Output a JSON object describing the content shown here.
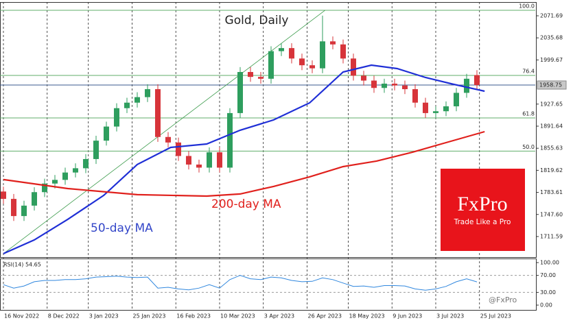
{
  "chart_data": {
    "type": "candlestick",
    "title": "Gold, Daily",
    "annotations": [
      "200-day MA",
      "50-day MA"
    ],
    "logo": {
      "name": "FxPro",
      "tagline": "Trade Like a Pro"
    },
    "watermark": "@FxPro",
    "xlim": [
      -1.33,
      206.67
    ],
    "xticks": [
      {
        "value": 0,
        "label": "16 Nov 2022"
      },
      {
        "value": 17,
        "label": "8 Dec 2022"
      },
      {
        "value": 33,
        "label": "3 Jan 2023"
      },
      {
        "value": 50,
        "label": "25 Jan 2023"
      },
      {
        "value": 67,
        "label": "16 Feb 2023"
      },
      {
        "value": 84,
        "label": "10 Mar 2023"
      },
      {
        "value": 101,
        "label": "3 Apr 2023"
      },
      {
        "value": 118,
        "label": "26 Apr 2023"
      },
      {
        "value": 134,
        "label": "18 May 2023"
      },
      {
        "value": 151,
        "label": "9 Jun 2023"
      },
      {
        "value": 168,
        "label": "3 Jul 2023"
      },
      {
        "value": 185,
        "label": "25 Jul 2023"
      }
    ],
    "ylim": [
      1678.0,
      2094.1
    ],
    "yticks": [
      2071.69,
      2035.68,
      1999.67,
      1927.65,
      1891.64,
      1855.63,
      1819.62,
      1783.61,
      {
        "value": 1747.6,
        "label": "1747.60"
      },
      1711.59
    ],
    "last_price": 1958.75,
    "x": [
      0,
      4,
      8,
      12,
      16,
      20,
      24,
      28,
      32,
      36,
      40,
      44,
      48,
      52,
      56,
      60,
      64,
      68,
      72,
      76,
      80,
      84,
      88,
      92,
      96,
      100,
      104,
      108,
      112,
      116,
      120,
      124,
      128,
      132,
      136,
      140,
      144,
      148,
      152,
      156,
      160,
      164,
      168,
      172,
      176,
      180,
      184
    ],
    "open": [
      1785,
      1773,
      1745,
      1762,
      1784,
      1798,
      1804,
      1816,
      1823,
      1838,
      1868,
      1891,
      1921,
      1930,
      1939,
      1952,
      1874,
      1865,
      1843,
      1829,
      1824,
      1849,
      1824,
      1913,
      1980,
      1972,
      1969,
      2014,
      2019,
      2002,
      1991,
      1986,
      2030,
      2025,
      2002,
      1974,
      1966,
      1954,
      1961,
      1958,
      1952,
      1930,
      1913,
      1916,
      1924,
      1946,
      1975
    ],
    "high": [
      1793,
      1781,
      1770,
      1792,
      1806,
      1812,
      1824,
      1831,
      1846,
      1876,
      1899,
      1929,
      1938,
      1947,
      1960,
      1960,
      1882,
      1873,
      1851,
      1837,
      1857,
      1857,
      1921,
      1988,
      1988,
      1980,
      2022,
      2027,
      2027,
      2010,
      1999,
      2072,
      2038,
      2033,
      2010,
      1982,
      1974,
      1969,
      1969,
      1966,
      1960,
      1938,
      1924,
      1932,
      1954,
      1977,
      1983
    ],
    "low": [
      1765,
      1737,
      1737,
      1754,
      1776,
      1790,
      1796,
      1808,
      1815,
      1830,
      1860,
      1883,
      1913,
      1922,
      1931,
      1866,
      1857,
      1835,
      1821,
      1816,
      1816,
      1816,
      1816,
      1905,
      1964,
      1961,
      1961,
      2006,
      1994,
      1983,
      1978,
      1978,
      2017,
      1994,
      1966,
      1958,
      1946,
      1946,
      1950,
      1944,
      1922,
      1905,
      1905,
      1908,
      1916,
      1938,
      1951
    ],
    "close": [
      1773,
      1745,
      1762,
      1784,
      1798,
      1804,
      1816,
      1823,
      1838,
      1868,
      1891,
      1921,
      1930,
      1939,
      1952,
      1874,
      1865,
      1843,
      1829,
      1824,
      1849,
      1824,
      1913,
      1980,
      1972,
      1969,
      2014,
      2019,
      2002,
      1991,
      1986,
      2030,
      2025,
      2002,
      1974,
      1966,
      1954,
      1961,
      1958,
      1952,
      1930,
      1913,
      1916,
      1924,
      1946,
      1969,
      1958.75
    ],
    "up_color": "#2e9e5e",
    "down_color": "#d7343a",
    "moving_averages": [
      {
        "color": "#1f2fd6",
        "x": [
          0,
          12,
          25,
          39,
          52,
          65,
          79,
          92,
          105,
          119,
          132,
          143,
          153,
          164,
          175,
          187
        ],
        "values": [
          1683.7,
          1706.1,
          1739.6,
          1778.8,
          1829.1,
          1857.0,
          1862.6,
          1885.0,
          1901.8,
          1929.7,
          1980.0,
          1991.2,
          1985.6,
          1971.1,
          1959.9,
          1948.7
        ]
      },
      {
        "color": "#e0201c",
        "x": [
          0,
          25,
          52,
          79,
          92,
          105,
          119,
          132,
          145,
          159,
          172,
          187
        ],
        "values": [
          1804.5,
          1789.9,
          1779.9,
          1777.6,
          1781.0,
          1793.3,
          1809.0,
          1825.7,
          1834.7,
          1849.2,
          1864.8,
          1882.7
        ]
      }
    ],
    "trendline": {
      "color": "#3a9a4a",
      "x": [
        0,
        125
      ],
      "values": [
        1683.7,
        2080.7
      ]
    },
    "fib_levels": [
      {
        "value": 2080.7,
        "label": "100.0"
      },
      {
        "value": 1974.4,
        "label": "76.4"
      },
      {
        "value": 1905.0,
        "label": "61.8"
      },
      {
        "value": 1851.0,
        "label": "50.0"
      }
    ],
    "fib_color": "#5fae6a",
    "rsi": {
      "title": "RSI(14) 54.65",
      "color": "#2e86de",
      "ylim": [
        -11.3,
        109.7
      ],
      "yticks": [
        {
          "value": 100,
          "label": "100.00"
        },
        {
          "value": 70,
          "label": "70.00"
        },
        {
          "value": 30,
          "label": "30.00"
        },
        {
          "value": 0,
          "label": "0.00"
        }
      ],
      "levels": [
        70,
        30
      ],
      "values": [
        48,
        40,
        45,
        55,
        58,
        58,
        60,
        60,
        62,
        66,
        67,
        68,
        66,
        65,
        66,
        40,
        42,
        38,
        36,
        40,
        48,
        40,
        60,
        70,
        62,
        60,
        66,
        64,
        58,
        55,
        56,
        64,
        60,
        52,
        44,
        45,
        42,
        46,
        46,
        45,
        38,
        35,
        38,
        44,
        55,
        62,
        54.65
      ]
    }
  }
}
